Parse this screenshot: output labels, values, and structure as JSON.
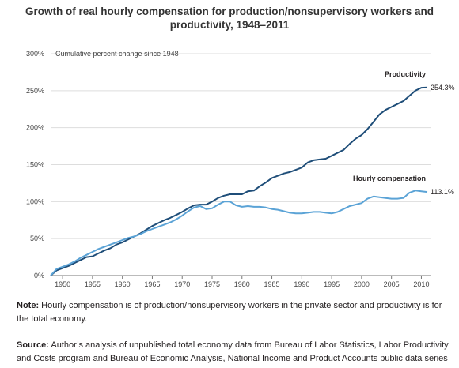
{
  "chart_data": {
    "type": "line",
    "title_line1": "Growth of real hourly compensation for production/nonsupervisory workers and",
    "title_line2": "productivity, 1948–2011",
    "ylabel": "Cumulative percent change since 1948",
    "xlabel": "",
    "xlim": [
      1948,
      2011
    ],
    "ylim": [
      0,
      300
    ],
    "x_ticks": [
      "1950",
      "1955",
      "1960",
      "1965",
      "1970",
      "1975",
      "1980",
      "1985",
      "1990",
      "1995",
      "2000",
      "2005",
      "2010"
    ],
    "x_tick_values": [
      1950,
      1955,
      1960,
      1965,
      1970,
      1975,
      1980,
      1985,
      1990,
      1995,
      2000,
      2005,
      2010
    ],
    "y_ticks": [
      "0%",
      "50%",
      "100%",
      "150%",
      "200%",
      "250%",
      "300%"
    ],
    "y_tick_values": [
      0,
      50,
      100,
      150,
      200,
      250,
      300
    ],
    "grid": true,
    "colors": {
      "productivity": "#1f4e79",
      "compensation": "#5ba3d6",
      "grid": "#dddddd",
      "axis": "#777777"
    },
    "series": [
      {
        "name": "Productivity",
        "end_label": "254.3%",
        "x": [
          1948,
          1949,
          1950,
          1951,
          1952,
          1953,
          1954,
          1955,
          1956,
          1957,
          1958,
          1959,
          1960,
          1961,
          1962,
          1963,
          1964,
          1965,
          1966,
          1967,
          1968,
          1969,
          1970,
          1971,
          1972,
          1973,
          1974,
          1975,
          1976,
          1977,
          1978,
          1979,
          1980,
          1981,
          1982,
          1983,
          1984,
          1985,
          1986,
          1987,
          1988,
          1989,
          1990,
          1991,
          1992,
          1993,
          1994,
          1995,
          1996,
          1997,
          1998,
          1999,
          2000,
          2001,
          2002,
          2003,
          2004,
          2005,
          2006,
          2007,
          2008,
          2009,
          2010,
          2011
        ],
        "values": [
          0,
          7,
          10,
          13,
          17,
          21,
          25,
          26,
          30,
          34,
          37,
          42,
          45,
          49,
          53,
          57,
          62,
          67,
          71,
          75,
          78,
          82,
          86,
          91,
          95,
          96,
          96,
          100,
          105,
          108,
          110,
          110,
          110,
          114,
          115,
          121,
          126,
          132,
          135,
          138,
          140,
          143,
          146,
          153,
          156,
          157,
          158,
          162,
          166,
          170,
          178,
          185,
          190,
          198,
          208,
          218,
          224,
          228,
          232,
          236,
          243,
          250,
          254,
          254.3
        ]
      },
      {
        "name": "Hourly compensation",
        "end_label": "113.1%",
        "x": [
          1948,
          1949,
          1950,
          1951,
          1952,
          1953,
          1954,
          1955,
          1956,
          1957,
          1958,
          1959,
          1960,
          1961,
          1962,
          1963,
          1964,
          1965,
          1966,
          1967,
          1968,
          1969,
          1970,
          1971,
          1972,
          1973,
          1974,
          1975,
          1976,
          1977,
          1978,
          1979,
          1980,
          1981,
          1982,
          1983,
          1984,
          1985,
          1986,
          1987,
          1988,
          1989,
          1990,
          1991,
          1992,
          1993,
          1994,
          1995,
          1996,
          1997,
          1998,
          1999,
          2000,
          2001,
          2002,
          2003,
          2004,
          2005,
          2006,
          2007,
          2008,
          2009,
          2010,
          2011
        ],
        "values": [
          0,
          9,
          12,
          15,
          19,
          24,
          28,
          32,
          36,
          39,
          42,
          45,
          48,
          51,
          53,
          56,
          60,
          63,
          66,
          69,
          72,
          76,
          81,
          87,
          92,
          94,
          90,
          91,
          96,
          100,
          100,
          95,
          93,
          94,
          93,
          93,
          92,
          90,
          89,
          87,
          85,
          84,
          84,
          85,
          86,
          86,
          85,
          84,
          86,
          90,
          94,
          96,
          98,
          104,
          107,
          106,
          105,
          104,
          104,
          105,
          112,
          115,
          114,
          113.1
        ]
      }
    ]
  },
  "note": {
    "label": "Note:",
    "text": "Hourly compensation is of production/nonsupervisory workers in the private sector and productivity is for the total economy."
  },
  "source": {
    "label": "Source:",
    "text": "Author’s analysis of unpublished total economy data from Bureau of Labor Statistics, Labor Productivity and Costs program and Bureau of Economic Analysis, National Income and Product Accounts public data series"
  }
}
